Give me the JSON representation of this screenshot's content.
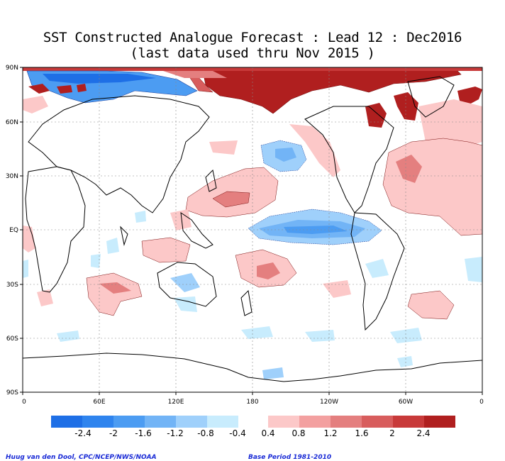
{
  "title_line1": "SST Constructed Analogue Forecast : Lead 12 : Dec2016",
  "title_line2": "(last data used thru Nov 2015 )",
  "lat_labels": [
    "90N",
    "60N",
    "30N",
    "EQ",
    "30S",
    "60S",
    "90S"
  ],
  "lon_labels": [
    "0",
    "60E",
    "120E",
    "180",
    "120W",
    "60W",
    "0"
  ],
  "colorbar": {
    "labels": [
      "-2.4",
      "-2",
      "-1.6",
      "-1.2",
      "-0.8",
      "-0.4",
      "0.4",
      "0.8",
      "1.2",
      "1.6",
      "2",
      "2.4"
    ],
    "negative_colors": [
      "#1e6fe6",
      "#2f84ee",
      "#4c9cf2",
      "#72b4f6",
      "#9fd0fb",
      "#c8ecfd"
    ],
    "positive_colors": [
      "#fcc8c8",
      "#f3a0a0",
      "#e47f7f",
      "#d85d5d",
      "#c83a3a",
      "#b01f1f"
    ]
  },
  "footer_left": "Huug van den Dool, CPC/NCEP/NWS/NOAA",
  "footer_right": "Base Period 1981-2010"
}
